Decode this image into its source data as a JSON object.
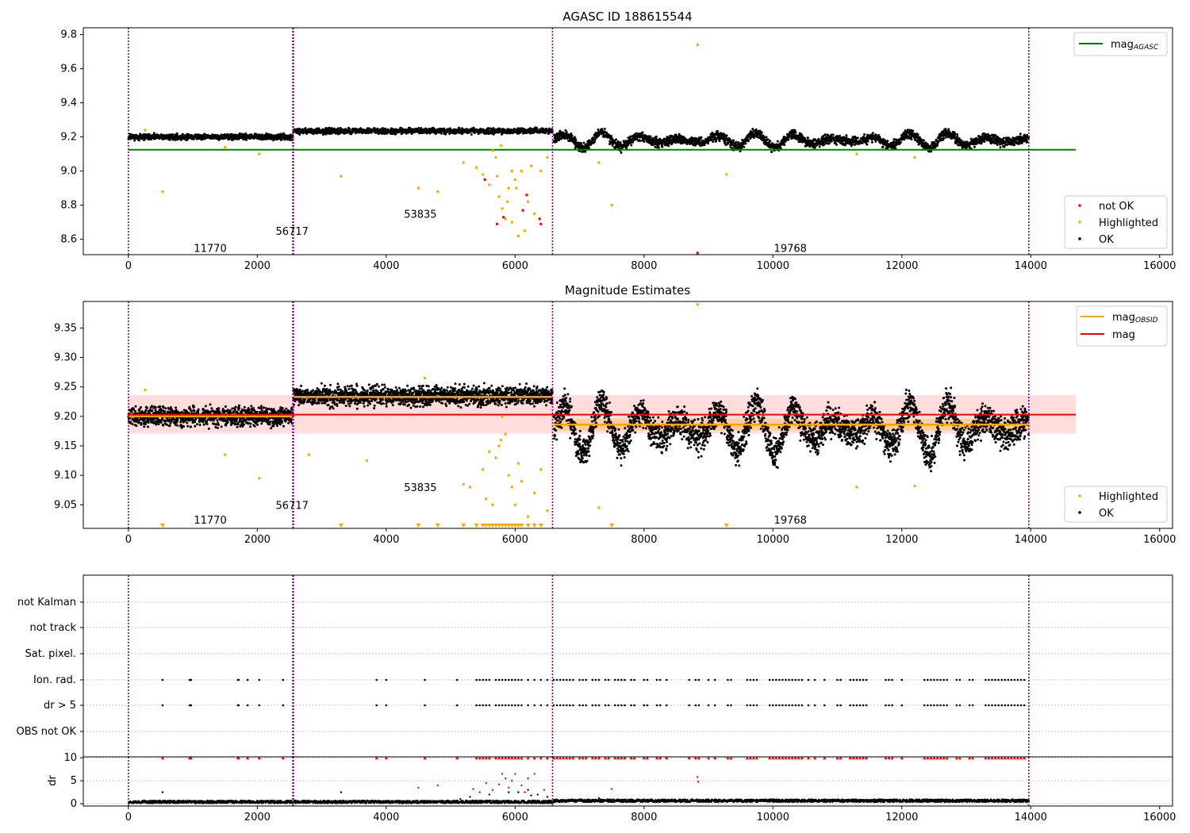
{
  "figure": {
    "title": "AGASC ID 188615544"
  },
  "chart_data": [
    {
      "id": "panel-magnitude-agasc",
      "type": "scatter",
      "title": "AGASC ID 188615544",
      "xlabel": "",
      "ylabel": "",
      "xlim": [
        -700,
        16200
      ],
      "ylim": [
        8.51,
        9.84
      ],
      "x_ticks": [
        0,
        2000,
        4000,
        6000,
        8000,
        10000,
        12000,
        14000,
        16000
      ],
      "y_ticks": [
        8.6,
        8.8,
        9.0,
        9.2,
        9.4,
        9.6,
        9.8
      ],
      "y_tick_labels": [
        "8.6",
        "8.8",
        "9.0",
        "9.2",
        "9.4",
        "9.6",
        "9.8"
      ],
      "grid": false,
      "obs_boundaries": [
        0,
        2550,
        2560,
        6580,
        13970
      ],
      "obs_labels": [
        {
          "text": "11770",
          "x": 1270,
          "y": 8.55
        },
        {
          "text": "56717",
          "x": 2540,
          "y": 8.65
        },
        {
          "text": "53835",
          "x": 4530,
          "y": 8.75
        },
        {
          "text": "19768",
          "x": 10270,
          "y": 8.55
        }
      ],
      "reference_lines": [
        {
          "name": "mag_AGASC",
          "value": 9.125,
          "x": [
            0,
            14700
          ],
          "color": "#008000"
        }
      ],
      "ok_segments": [
        {
          "x": [
            0,
            2550
          ],
          "center": 9.2,
          "spread": 0.012,
          "wave": 0
        },
        {
          "x": [
            2560,
            6580
          ],
          "center": 9.235,
          "spread": 0.012,
          "wave": 0
        },
        {
          "x": [
            6600,
            13970
          ],
          "center": 9.18,
          "spread": 0.02,
          "wave": 0.045
        }
      ],
      "highlighted_points": [
        [
          530,
          8.88
        ],
        [
          2030,
          9.1
        ],
        [
          3300,
          8.97
        ],
        [
          4500,
          8.9
        ],
        [
          4800,
          8.88
        ],
        [
          7300,
          9.05
        ],
        [
          7500,
          8.8
        ],
        [
          9280,
          8.98
        ],
        [
          8830,
          9.74
        ],
        [
          11300,
          9.1
        ],
        [
          12200,
          9.08
        ],
        [
          260,
          9.24
        ],
        [
          1500,
          9.14
        ],
        [
          5200,
          9.05
        ],
        [
          5400,
          9.02
        ],
        [
          5500,
          8.98
        ],
        [
          5600,
          8.92
        ],
        [
          5700,
          9.08
        ],
        [
          5750,
          8.85
        ],
        [
          5800,
          8.78
        ],
        [
          5850,
          8.72
        ],
        [
          5900,
          8.9
        ],
        [
          5950,
          9.0
        ],
        [
          6000,
          8.95
        ],
        [
          6050,
          8.62
        ],
        [
          6100,
          9.0
        ],
        [
          6150,
          8.65
        ],
        [
          6200,
          8.82
        ],
        [
          6300,
          8.75
        ],
        [
          6400,
          9.0
        ],
        [
          6500,
          9.08
        ],
        [
          5650,
          9.12
        ],
        [
          5720,
          8.97
        ],
        [
          5880,
          8.82
        ],
        [
          6020,
          8.9
        ],
        [
          6250,
          9.03
        ],
        [
          5950,
          8.7
        ],
        [
          5780,
          9.15
        ]
      ],
      "not_ok_points": [
        [
          5720,
          8.69
        ],
        [
          5820,
          8.73
        ],
        [
          5530,
          8.95
        ],
        [
          6120,
          8.77
        ],
        [
          6180,
          8.86
        ],
        [
          6380,
          8.72
        ],
        [
          6400,
          8.69
        ],
        [
          8830,
          8.52
        ]
      ],
      "legend": {
        "position": "top-right",
        "items": [
          {
            "label": "mag",
            "sub": "AGASC",
            "color": "#008000"
          }
        ]
      },
      "legend2": {
        "position": "lower-right",
        "items": [
          {
            "label": "not OK",
            "color": "#ff0000"
          },
          {
            "label": "Highlighted",
            "color": "#ffa500"
          },
          {
            "label": "OK",
            "color": "#000000"
          }
        ]
      }
    },
    {
      "id": "panel-magnitude-estimates",
      "type": "scatter",
      "title": "Magnitude Estimates",
      "xlabel": "",
      "ylabel": "",
      "xlim": [
        -700,
        16200
      ],
      "ylim": [
        9.01,
        9.395
      ],
      "x_ticks": [
        0,
        2000,
        4000,
        6000,
        8000,
        10000,
        12000,
        14000,
        16000
      ],
      "y_ticks": [
        9.05,
        9.1,
        9.15,
        9.2,
        9.25,
        9.3,
        9.35
      ],
      "y_tick_labels": [
        "9.05",
        "9.10",
        "9.15",
        "9.20",
        "9.25",
        "9.30",
        "9.35"
      ],
      "grid": false,
      "obs_boundaries": [
        0,
        2550,
        2560,
        6580,
        13970
      ],
      "obs_labels": [
        {
          "text": "11770",
          "x": 1270,
          "y": 9.025
        },
        {
          "text": "56717",
          "x": 2540,
          "y": 9.05
        },
        {
          "text": "53835",
          "x": 4530,
          "y": 9.08
        },
        {
          "text": "19768",
          "x": 10270,
          "y": 9.025
        }
      ],
      "band": {
        "x": [
          0,
          14700
        ],
        "range": [
          9.171,
          9.236
        ],
        "color": "#ffb3b3"
      },
      "reference_lines": [
        {
          "name": "mag",
          "value": 9.203,
          "x": [
            0,
            14700
          ],
          "color": "#ff0000"
        }
      ],
      "obsid_estimates": [
        {
          "x": [
            0,
            2550
          ],
          "value": 9.2,
          "band": [
            9.19,
            9.21
          ]
        },
        {
          "x": [
            2560,
            6580
          ],
          "value": 9.233,
          "band": [
            9.224,
            9.242
          ]
        },
        {
          "x": [
            6600,
            13970
          ],
          "value": 9.186,
          "band": [
            9.176,
            9.196
          ]
        }
      ],
      "ok_segments": [
        {
          "x": [
            0,
            2550
          ],
          "center": 9.2,
          "spread": 0.012,
          "wave": 0
        },
        {
          "x": [
            2560,
            6580
          ],
          "center": 9.235,
          "spread": 0.012,
          "wave": 0
        },
        {
          "x": [
            6600,
            13970
          ],
          "center": 9.18,
          "spread": 0.02,
          "wave": 0.045
        }
      ],
      "highlighted_points": [
        [
          260,
          9.245
        ],
        [
          1500,
          9.135
        ],
        [
          2030,
          9.095
        ],
        [
          3700,
          9.125
        ],
        [
          4600,
          9.265
        ],
        [
          5200,
          9.085
        ],
        [
          5300,
          9.08
        ],
        [
          5500,
          9.11
        ],
        [
          5550,
          9.06
        ],
        [
          5650,
          9.05
        ],
        [
          5700,
          9.13
        ],
        [
          5750,
          9.15
        ],
        [
          5800,
          9.2
        ],
        [
          5850,
          9.17
        ],
        [
          5900,
          9.1
        ],
        [
          5950,
          9.08
        ],
        [
          6000,
          9.05
        ],
        [
          6050,
          9.12
        ],
        [
          6100,
          9.09
        ],
        [
          6200,
          9.03
        ],
        [
          6300,
          9.07
        ],
        [
          6500,
          9.04
        ],
        [
          7300,
          9.045
        ],
        [
          8830,
          9.39
        ],
        [
          11300,
          9.08
        ],
        [
          12200,
          9.082
        ],
        [
          2800,
          9.135
        ],
        [
          6400,
          9.11
        ],
        [
          5600,
          9.14
        ],
        [
          5780,
          9.16
        ]
      ],
      "below_axis_markers": [
        530,
        3300,
        4500,
        4800,
        5200,
        5400,
        5500,
        5550,
        5600,
        5650,
        5700,
        5750,
        5800,
        5850,
        5900,
        5950,
        6000,
        6050,
        6100,
        6200,
        6300,
        6400,
        7500,
        9280
      ],
      "legend": {
        "position": "top-right",
        "items": [
          {
            "label": "mag",
            "sub": "OBSID",
            "color": "#ffa500"
          },
          {
            "label": "mag",
            "sub": "",
            "color": "#ff0000"
          }
        ]
      },
      "legend2": {
        "position": "lower-right",
        "items": [
          {
            "label": "Highlighted",
            "color": "#ffa500"
          },
          {
            "label": "OK",
            "color": "#000000"
          }
        ]
      }
    },
    {
      "id": "panel-flags",
      "type": "scatter",
      "title": "",
      "xlim": [
        -700,
        16200
      ],
      "obs_boundaries": [
        0,
        2550,
        2560,
        6580,
        13970
      ],
      "categories": [
        "not Kalman",
        "not track",
        "Sat. pixel.",
        "Ion. rad.",
        "dr > 5",
        "OBS not OK"
      ],
      "flag_times": [
        530,
        950,
        960,
        970,
        1700,
        1710,
        1850,
        2030,
        2400,
        3850,
        4000,
        4600,
        5100,
        5400,
        5450,
        5500,
        5550,
        5600,
        5700,
        5750,
        5800,
        5850,
        5900,
        5950,
        6000,
        6050,
        6100,
        6200,
        6300,
        6400,
        6500,
        6600,
        6650,
        6700,
        6750,
        6800,
        6850,
        6900,
        7000,
        7050,
        7100,
        7200,
        7250,
        7300,
        7400,
        7450,
        7550,
        7600,
        7650,
        7700,
        7800,
        7850,
        8000,
        8050,
        8200,
        8250,
        8350,
        8700,
        8800,
        8850,
        9000,
        9100,
        9300,
        9350,
        9600,
        9650,
        9700,
        9750,
        9950,
        10000,
        10050,
        10100,
        10150,
        10200,
        10250,
        10300,
        10350,
        10400,
        10450,
        10550,
        10650,
        10800,
        11000,
        11050,
        11200,
        11250,
        11300,
        11350,
        11400,
        11450,
        11750,
        11800,
        11850,
        12000,
        12350,
        12400,
        12450,
        12500,
        12550,
        12600,
        12650,
        12700,
        12850,
        12900,
        13050,
        13100,
        13300,
        13350,
        13400,
        13450,
        13500,
        13550,
        13600,
        13650,
        13700,
        13750,
        13800,
        13850,
        13900
      ]
    },
    {
      "id": "panel-dr",
      "type": "scatter",
      "title": "",
      "xlabel": "",
      "ylabel": "dr",
      "xlim": [
        -700,
        16200
      ],
      "ylim": [
        -0.5,
        10.2
      ],
      "x_ticks": [
        0,
        2000,
        4000,
        6000,
        8000,
        10000,
        12000,
        14000,
        16000
      ],
      "y_ticks": [
        0,
        5,
        10
      ],
      "y_tick_labels": [
        "0",
        "5",
        "10"
      ],
      "grid": true,
      "obs_boundaries": [
        0,
        2550,
        2560,
        6580,
        13970
      ],
      "dr_base": {
        "x": [
          0,
          13970
        ],
        "center": 0.4,
        "spread": 0.3
      },
      "capped_value": 10,
      "red_points": [
        [
          4500,
          3.5
        ],
        [
          4800,
          4
        ],
        [
          5350,
          3.2
        ],
        [
          5450,
          2.5
        ],
        [
          5550,
          4.5
        ],
        [
          5650,
          3
        ],
        [
          5750,
          4.2
        ],
        [
          5800,
          6.5
        ],
        [
          5850,
          5.5
        ],
        [
          5900,
          3.5
        ],
        [
          5950,
          5
        ],
        [
          6000,
          6.5
        ],
        [
          6100,
          4
        ],
        [
          6150,
          2.5
        ],
        [
          6200,
          5.5
        ],
        [
          6300,
          6.5
        ],
        [
          6450,
          3
        ],
        [
          7500,
          3.2
        ],
        [
          8830,
          5.8
        ],
        [
          8840,
          4.8
        ]
      ],
      "black_mid_points": [
        [
          530,
          2.5
        ],
        [
          3300,
          2.5
        ],
        [
          5150,
          1
        ],
        [
          5300,
          1.5
        ],
        [
          5600,
          2
        ],
        [
          5900,
          2.5
        ],
        [
          6050,
          2.5
        ],
        [
          6200,
          3
        ],
        [
          6250,
          1.8
        ],
        [
          6350,
          2
        ],
        [
          6500,
          1.5
        ],
        [
          7300,
          1.2
        ]
      ]
    }
  ]
}
